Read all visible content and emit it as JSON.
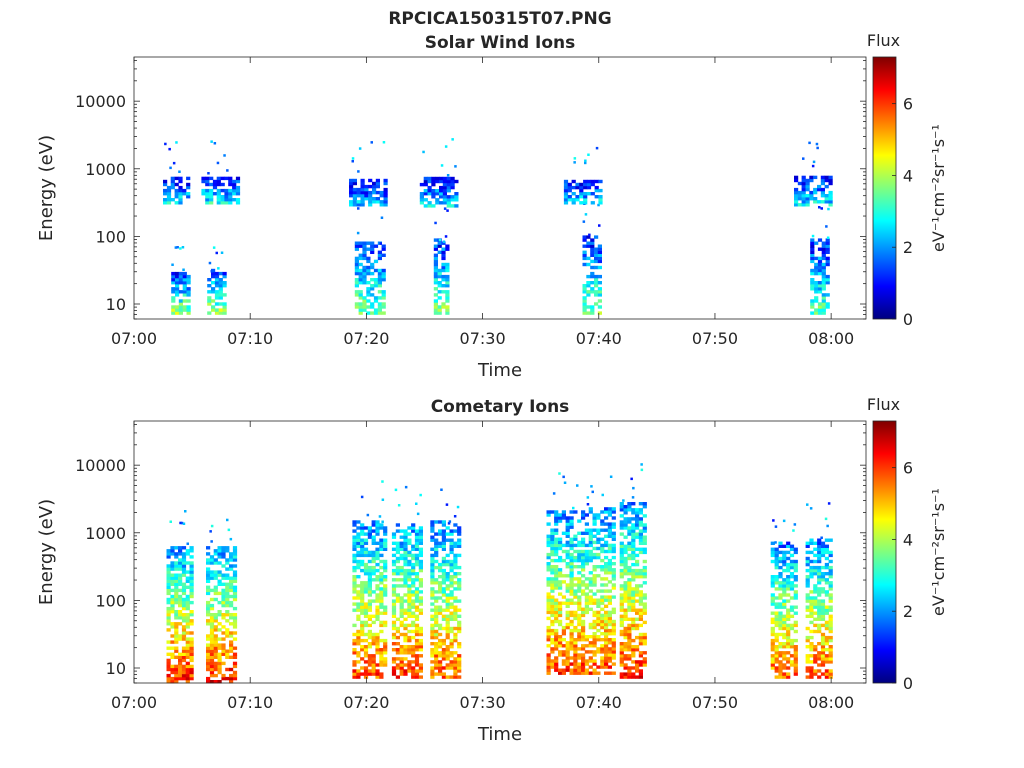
{
  "figure_title": "RPCICA150315T07.PNG",
  "colorbar_ticks": [
    "0",
    "2",
    "4",
    "6"
  ],
  "colormap": [
    "#00007f",
    "#0000ff",
    "#007fff",
    "#00ffff",
    "#7fff7f",
    "#ffff00",
    "#ff7f00",
    "#ff0000",
    "#7f0000"
  ],
  "chart_data": [
    {
      "type": "heatmap",
      "title": "Solar Wind Ions",
      "xlabel": "Time",
      "ylabel": "Energy (eV)",
      "x_range_minutes": [
        0,
        63
      ],
      "xticks": [
        "07:00",
        "07:10",
        "07:20",
        "07:30",
        "07:40",
        "07:50",
        "08:00"
      ],
      "xtick_minutes": [
        0,
        10,
        20,
        30,
        40,
        50,
        60
      ],
      "yscale": "log",
      "ylim": [
        6,
        45000
      ],
      "yticks": [
        "10",
        "100",
        "1000",
        "10000"
      ],
      "ytick_values": [
        10,
        100,
        1000,
        10000
      ],
      "colorbar_title": "Flux",
      "colorbar_label": "eV⁻¹cm⁻²sr⁻¹s⁻¹",
      "colorbar_range": [
        0,
        7.3
      ],
      "bursts": [
        {
          "start": 3.2,
          "end": 4.6,
          "emin": 7,
          "emax": 28,
          "flux": 3.8
        },
        {
          "start": 6.3,
          "end": 7.8,
          "emin": 7,
          "emax": 30,
          "flux": 3.9
        },
        {
          "start": 2.5,
          "end": 4.5,
          "emin": 300,
          "emax": 700,
          "flux": 2.6
        },
        {
          "start": 5.8,
          "end": 8.8,
          "emin": 300,
          "emax": 720,
          "flux": 2.8
        },
        {
          "start": 19.0,
          "end": 21.5,
          "emin": 7,
          "emax": 80,
          "flux": 3.6
        },
        {
          "start": 18.5,
          "end": 21.5,
          "emin": 280,
          "emax": 700,
          "flux": 2.3
        },
        {
          "start": 25.8,
          "end": 27.0,
          "emin": 7,
          "emax": 85,
          "flux": 3.7
        },
        {
          "start": 24.6,
          "end": 27.6,
          "emin": 270,
          "emax": 720,
          "flux": 2.6
        },
        {
          "start": 38.6,
          "end": 40.0,
          "emin": 7,
          "emax": 95,
          "flux": 3.5
        },
        {
          "start": 37.0,
          "end": 40.0,
          "emin": 300,
          "emax": 680,
          "flux": 2.5
        },
        {
          "start": 58.2,
          "end": 59.7,
          "emin": 7,
          "emax": 90,
          "flux": 3.4
        },
        {
          "start": 56.8,
          "end": 59.8,
          "emin": 280,
          "emax": 720,
          "flux": 2.7
        }
      ]
    },
    {
      "type": "heatmap",
      "title": "Cometary Ions",
      "xlabel": "Time",
      "ylabel": "Energy (eV)",
      "x_range_minutes": [
        0,
        63
      ],
      "xticks": [
        "07:00",
        "07:10",
        "07:20",
        "07:30",
        "07:40",
        "07:50",
        "08:00"
      ],
      "xtick_minutes": [
        0,
        10,
        20,
        30,
        40,
        50,
        60
      ],
      "yscale": "log",
      "ylim": [
        6,
        45000
      ],
      "yticks": [
        "10",
        "100",
        "1000",
        "10000"
      ],
      "ytick_values": [
        10,
        100,
        1000,
        10000
      ],
      "colorbar_title": "Flux",
      "colorbar_label": "eV⁻¹cm⁻²sr⁻¹s⁻¹",
      "colorbar_range": [
        0,
        7.3
      ],
      "bursts": [
        {
          "start": 2.8,
          "end": 5.0,
          "emin": 6,
          "emax": 600,
          "flux": 6.2
        },
        {
          "start": 6.2,
          "end": 8.6,
          "emin": 6,
          "emax": 600,
          "flux": 6.3
        },
        {
          "start": 18.8,
          "end": 21.6,
          "emin": 7,
          "emax": 1500,
          "flux": 5.9
        },
        {
          "start": 22.2,
          "end": 24.8,
          "emin": 7,
          "emax": 1300,
          "flux": 6.1
        },
        {
          "start": 25.5,
          "end": 27.9,
          "emin": 7,
          "emax": 1400,
          "flux": 5.8
        },
        {
          "start": 35.5,
          "end": 38.5,
          "emin": 8,
          "emax": 2000,
          "flux": 6.0
        },
        {
          "start": 38.8,
          "end": 41.2,
          "emin": 8,
          "emax": 2300,
          "flux": 5.9
        },
        {
          "start": 41.8,
          "end": 43.8,
          "emin": 7,
          "emax": 2700,
          "flux": 6.1
        },
        {
          "start": 54.8,
          "end": 56.8,
          "emin": 7,
          "emax": 700,
          "flux": 5.7
        },
        {
          "start": 57.8,
          "end": 59.8,
          "emin": 7,
          "emax": 800,
          "flux": 5.8
        }
      ]
    }
  ]
}
